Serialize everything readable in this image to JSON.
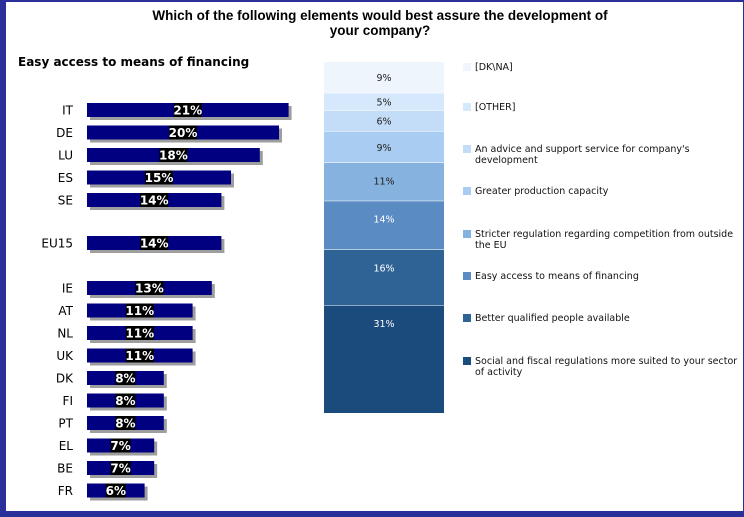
{
  "chart_data": [
    {
      "type": "bar",
      "orientation": "horizontal",
      "title": "Which of the following elements would best assure the development of your company?",
      "subtitle": "Easy access to means of financing",
      "groups": [
        {
          "categories": [
            "IT",
            "DE",
            "LU",
            "ES",
            "SE"
          ],
          "values": [
            21,
            20,
            18,
            15,
            14
          ]
        },
        {
          "categories": [
            "EU15"
          ],
          "values": [
            14
          ]
        },
        {
          "categories": [
            "IE",
            "AT",
            "NL",
            "UK",
            "DK",
            "FI",
            "PT",
            "EL",
            "BE",
            "FR"
          ],
          "values": [
            13,
            11,
            11,
            11,
            8,
            8,
            8,
            7,
            7,
            6
          ]
        }
      ],
      "value_labels": {
        "IT": "21%",
        "DE": "20%",
        "LU": "18%",
        "ES": "15%",
        "SE": "14%",
        "EU15": "14%",
        "IE": "13%",
        "AT": "11%",
        "NL": "11%",
        "UK": "11%",
        "DK": "8%",
        "FI": "8%",
        "PT": "8%",
        "EL": "7%",
        "BE": "7%",
        "FR": "6%"
      },
      "bar_color": "#000080",
      "shadow_color": "#9e9e9e"
    },
    {
      "type": "stacked_bar",
      "segments": [
        {
          "name": "Social and fiscal regulations more suited to your sector of activity",
          "value": 31,
          "label": "31%",
          "color": "#1b4a7d"
        },
        {
          "name": "Better qualified people available",
          "value": 16,
          "label": "16%",
          "color": "#2f6396"
        },
        {
          "name": "Easy access to means of financing",
          "value": 14,
          "label": "14%",
          "color": "#5a8bc3"
        },
        {
          "name": "Stricter regulation regarding competition from outside the EU",
          "value": 11,
          "label": "11%",
          "color": "#86b2e0"
        },
        {
          "name": "Greater production capacity",
          "value": 9,
          "label": "9%",
          "color": "#a9cdf2"
        },
        {
          "name": "An advice and support service for company's development",
          "value": 6,
          "label": "6%",
          "color": "#c3ddf8"
        },
        {
          "name": "[OTHER]",
          "value": 5,
          "label": "5%",
          "color": "#d6e8fb"
        },
        {
          "name": "[DK\\NA]",
          "value": 9,
          "label": "9%",
          "color": "#eef5fd"
        }
      ],
      "legend_order": [
        "[DK\\NA]",
        "[OTHER]",
        "An advice and support service for company's development",
        "Greater production capacity",
        "Stricter regulation regarding competition from outside the EU",
        "Easy access to means of financing",
        "Better qualified people available",
        "Social and fiscal regulations more suited to your sector of activity"
      ]
    }
  ],
  "title_line1": "Which of the following elements would best assure the development of",
  "title_line2": "your company?",
  "subtitle": "Easy access to means of financing"
}
